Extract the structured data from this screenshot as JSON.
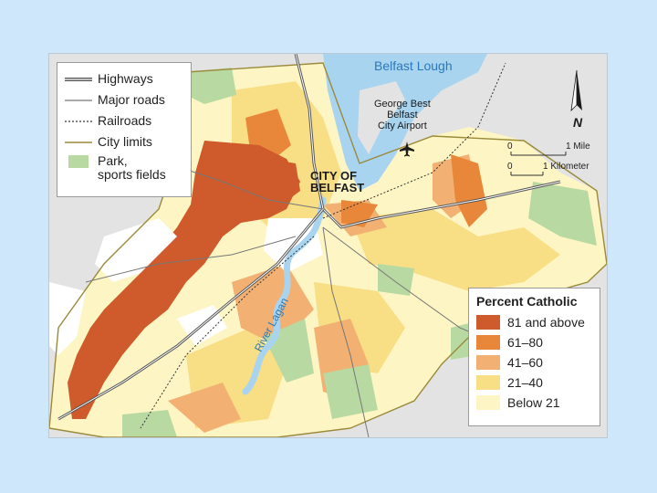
{
  "map": {
    "water_label": "Belfast Lough",
    "city_label_line1": "CITY OF",
    "city_label_line2": "BELFAST",
    "airport_line1": "George Best",
    "airport_line2": "Belfast",
    "airport_line3": "City Airport",
    "river_label": "River Lagan",
    "north_label": "N",
    "scale_mile_zero": "0",
    "scale_mile_label": "1 Mile",
    "scale_km_zero": "0",
    "scale_km_label": "1 Kilometer"
  },
  "road_legend": {
    "items": [
      {
        "label": "Highways",
        "icon": "double-line"
      },
      {
        "label": "Major roads",
        "icon": "thin-line"
      },
      {
        "label": "Railroads",
        "icon": "dashed-line"
      },
      {
        "label": "City limits",
        "icon": "olive-line"
      },
      {
        "label": "Park,",
        "label2": "sports fields",
        "icon": "green-box"
      }
    ]
  },
  "percent_legend": {
    "title": "Percent Catholic",
    "items": [
      {
        "label": "81 and above",
        "color": "#cf5a2b"
      },
      {
        "label": "61–80",
        "color": "#e8873a"
      },
      {
        "label": "41–60",
        "color": "#f2b072"
      },
      {
        "label": "21–40",
        "color": "#f8de85"
      },
      {
        "label": "Below 21",
        "color": "#fdf6c4"
      }
    ]
  },
  "colors": {
    "water": "#a9d4f0",
    "park": "#b9d9a2",
    "background": "#e3e3e3",
    "highway": "#555555",
    "city_limits": "#9a8a3a"
  }
}
